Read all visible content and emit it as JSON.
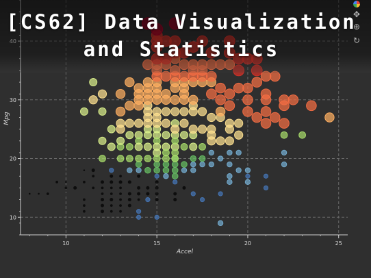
{
  "title": {
    "line1": "[CS62] Data Visualization",
    "line2": "and Statistics"
  },
  "toolbar": {
    "items": [
      {
        "name": "bokeh-logo-icon"
      },
      {
        "name": "pan-icon",
        "glyph": "✥"
      },
      {
        "name": "zoom-icon",
        "glyph": "⊕"
      },
      {
        "name": "reset-icon",
        "glyph": "↻"
      }
    ]
  },
  "colors": {
    "background": "#2f2f2f",
    "grid": "#6a6a6a",
    "axis": "#cfcfcf",
    "text": "#dcdcdc",
    "scale": [
      "#a50026",
      "#d73027",
      "#f46d43",
      "#fdae61",
      "#fee090",
      "#d9ef8b",
      "#a6d96a",
      "#66bd63",
      "#74add1",
      "#4575b4"
    ]
  },
  "chart_data": {
    "type": "scatter",
    "xlabel": "Accel",
    "ylabel": "Mpg",
    "xlim": [
      7.5,
      25.5
    ],
    "ylim": [
      7,
      47
    ],
    "xticks": [
      10,
      15,
      20,
      25
    ],
    "yticks": [
      10,
      20,
      30,
      40
    ],
    "grid": true,
    "points": [
      [
        8,
        14,
        13
      ],
      [
        8.5,
        15,
        14
      ],
      [
        8.5,
        14,
        12
      ],
      [
        9,
        14,
        11
      ],
      [
        8,
        14,
        12
      ],
      [
        9.5,
        16,
        11
      ],
      [
        10,
        16,
        12
      ],
      [
        10,
        15,
        11
      ],
      [
        10,
        14,
        13
      ],
      [
        10.5,
        15,
        10
      ],
      [
        11,
        18,
        12
      ],
      [
        11,
        16,
        11
      ],
      [
        11,
        13,
        11
      ],
      [
        11,
        12,
        11
      ],
      [
        11,
        11,
        11
      ],
      [
        11.5,
        18,
        10
      ],
      [
        11.5,
        17,
        11
      ],
      [
        11.5,
        15,
        11
      ],
      [
        12,
        16,
        10
      ],
      [
        12,
        15,
        11
      ],
      [
        12,
        14,
        11
      ],
      [
        12,
        13,
        10
      ],
      [
        12,
        12,
        10
      ],
      [
        12,
        11,
        10
      ],
      [
        12.5,
        18,
        9
      ],
      [
        12.5,
        17,
        10
      ],
      [
        12.5,
        16,
        10
      ],
      [
        12.5,
        15,
        11
      ],
      [
        12.5,
        14,
        11
      ],
      [
        12.5,
        13,
        10
      ],
      [
        12.5,
        12,
        11
      ],
      [
        12.5,
        11,
        11
      ],
      [
        13,
        17,
        11
      ],
      [
        13,
        16,
        10
      ],
      [
        13,
        15,
        11
      ],
      [
        13,
        14,
        11
      ],
      [
        13,
        13,
        11
      ],
      [
        13,
        12,
        11
      ],
      [
        13,
        11,
        11
      ],
      [
        13.5,
        14,
        10
      ],
      [
        13.5,
        13,
        10
      ],
      [
        13.5,
        12,
        10
      ],
      [
        13.5,
        16,
        10
      ],
      [
        14,
        14,
        10
      ],
      [
        14,
        13,
        11
      ],
      [
        14,
        15,
        10
      ],
      [
        14,
        17,
        10
      ],
      [
        14.5,
        13,
        9
      ],
      [
        14.5,
        14,
        10
      ],
      [
        14.5,
        15,
        10
      ],
      [
        15,
        16,
        10
      ],
      [
        15,
        15,
        10
      ],
      [
        15,
        17,
        9
      ],
      [
        15,
        13,
        10
      ],
      [
        15,
        14,
        10
      ],
      [
        14,
        11,
        9
      ],
      [
        14,
        10,
        9
      ],
      [
        15,
        10,
        9
      ],
      [
        16,
        13,
        10
      ],
      [
        16,
        14,
        10
      ],
      [
        16.5,
        15,
        10
      ],
      [
        16,
        16,
        9
      ],
      [
        17,
        14,
        9
      ],
      [
        17.5,
        13,
        9
      ],
      [
        18.5,
        14,
        9
      ],
      [
        18.5,
        9,
        8
      ],
      [
        13.5,
        18,
        8
      ],
      [
        14,
        18,
        8
      ],
      [
        14,
        19,
        7
      ],
      [
        14.5,
        18,
        7
      ],
      [
        15,
        18,
        7
      ],
      [
        15,
        19,
        7
      ],
      [
        15.5,
        18,
        7
      ],
      [
        15.5,
        19,
        7
      ],
      [
        15.5,
        17,
        8
      ],
      [
        16,
        17,
        7
      ],
      [
        16,
        18,
        7
      ],
      [
        16,
        19,
        7
      ],
      [
        16,
        20,
        7
      ],
      [
        16.5,
        18,
        8
      ],
      [
        16.5,
        19,
        7
      ],
      [
        17,
        19,
        8
      ],
      [
        17,
        20,
        7
      ],
      [
        17,
        18,
        8
      ],
      [
        17.5,
        19,
        8
      ],
      [
        17.5,
        20,
        7
      ],
      [
        18,
        21,
        8
      ],
      [
        18,
        19,
        8
      ],
      [
        18.5,
        20,
        8
      ],
      [
        19,
        19,
        8
      ],
      [
        19,
        21,
        8
      ],
      [
        19.5,
        21,
        8
      ],
      [
        19,
        17,
        8
      ],
      [
        19.5,
        18,
        8
      ],
      [
        19,
        16,
        8
      ],
      [
        20,
        17,
        9
      ],
      [
        20,
        18,
        8
      ],
      [
        20,
        16,
        8
      ],
      [
        21,
        15,
        9
      ],
      [
        21,
        17,
        9
      ],
      [
        22,
        19,
        8
      ],
      [
        22,
        21,
        8
      ],
      [
        13,
        22,
        6
      ],
      [
        13,
        23,
        5
      ],
      [
        13.5,
        22,
        6
      ],
      [
        13.5,
        24,
        5
      ],
      [
        14,
        24,
        5
      ],
      [
        14,
        23,
        6
      ],
      [
        14,
        22,
        5
      ],
      [
        14.5,
        25,
        5
      ],
      [
        14.5,
        24,
        5
      ],
      [
        14.5,
        22,
        5
      ],
      [
        15,
        24,
        5
      ],
      [
        15,
        23,
        6
      ],
      [
        15,
        22,
        5
      ],
      [
        15,
        21,
        5
      ],
      [
        15,
        25,
        5
      ],
      [
        15.5,
        24,
        5
      ],
      [
        15.5,
        22,
        5
      ],
      [
        15.5,
        21,
        6
      ],
      [
        16,
        22,
        5
      ],
      [
        16,
        24,
        5
      ],
      [
        16,
        23,
        6
      ],
      [
        16,
        21,
        6
      ],
      [
        16.5,
        22,
        6
      ],
      [
        16.5,
        24,
        5
      ],
      [
        17,
        22,
        5
      ],
      [
        17,
        24,
        5
      ],
      [
        17.5,
        22,
        6
      ],
      [
        12.5,
        22,
        5
      ],
      [
        12,
        23,
        5
      ],
      [
        12,
        20,
        6
      ],
      [
        13,
        20,
        6
      ],
      [
        13.5,
        20,
        6
      ],
      [
        14,
        20,
        6
      ],
      [
        14.5,
        20,
        6
      ],
      [
        15,
        20,
        6
      ],
      [
        15.5,
        20,
        6
      ],
      [
        16,
        20,
        6
      ],
      [
        12.5,
        25,
        5
      ],
      [
        13,
        26,
        4
      ],
      [
        13,
        25,
        4
      ],
      [
        13.5,
        26,
        4
      ],
      [
        14,
        26,
        4
      ],
      [
        14.5,
        26,
        4
      ],
      [
        15,
        26,
        4
      ],
      [
        15.5,
        26,
        4
      ],
      [
        16,
        26,
        5
      ],
      [
        16.5,
        26,
        4
      ],
      [
        17,
        25,
        4
      ],
      [
        17.5,
        25,
        4
      ],
      [
        18,
        25,
        4
      ],
      [
        18,
        24,
        4
      ],
      [
        16,
        25,
        4
      ],
      [
        15,
        27,
        4
      ],
      [
        14.5,
        28,
        4
      ],
      [
        14.5,
        29,
        4
      ],
      [
        15,
        28,
        4
      ],
      [
        15.5,
        28,
        4
      ],
      [
        16,
        28,
        4
      ],
      [
        16.5,
        28,
        4
      ],
      [
        17,
        28,
        4
      ],
      [
        17.5,
        28,
        4
      ],
      [
        18,
        27,
        4
      ],
      [
        18.5,
        27,
        4
      ],
      [
        19,
        25,
        4
      ],
      [
        19,
        26,
        4
      ],
      [
        19.5,
        26,
        4
      ],
      [
        19.5,
        24,
        4
      ],
      [
        18.5,
        23,
        4
      ],
      [
        19,
        23,
        4
      ],
      [
        18,
        23,
        4
      ],
      [
        14.5,
        27,
        4
      ],
      [
        17,
        29,
        4
      ],
      [
        14,
        30,
        3
      ],
      [
        14,
        29,
        3
      ],
      [
        14.5,
        30,
        3
      ],
      [
        15,
        30,
        3
      ],
      [
        15.5,
        30,
        3
      ],
      [
        16,
        30,
        3
      ],
      [
        16.5,
        30,
        3
      ],
      [
        17,
        30,
        3
      ],
      [
        14.5,
        31,
        3
      ],
      [
        15,
        31,
        3
      ],
      [
        15.5,
        31,
        3
      ],
      [
        16.5,
        31,
        3
      ],
      [
        16,
        32,
        3
      ],
      [
        16.5,
        32,
        3
      ],
      [
        14.5,
        32,
        3
      ],
      [
        15,
        32,
        3
      ],
      [
        14,
        31,
        3
      ],
      [
        14,
        32,
        3
      ],
      [
        13.5,
        33,
        3
      ],
      [
        14.5,
        33,
        3
      ],
      [
        15,
        33,
        3
      ],
      [
        16,
        33,
        3
      ],
      [
        16.5,
        33,
        3
      ],
      [
        17,
        33,
        3
      ],
      [
        17.5,
        33,
        3
      ],
      [
        18,
        33,
        3
      ],
      [
        15,
        34,
        2
      ],
      [
        15.5,
        34,
        2
      ],
      [
        16,
        34,
        2
      ],
      [
        16.5,
        34,
        2
      ],
      [
        17,
        34,
        2
      ],
      [
        17.5,
        34,
        2
      ],
      [
        15,
        35,
        2
      ],
      [
        16,
        35,
        2
      ],
      [
        17,
        35,
        2
      ],
      [
        17.5,
        35,
        2
      ],
      [
        14.5,
        36,
        2
      ],
      [
        15,
        36,
        2
      ],
      [
        15.5,
        36,
        2
      ],
      [
        16,
        37,
        2
      ],
      [
        16.5,
        36,
        2
      ],
      [
        17,
        36,
        2
      ],
      [
        17.5,
        36,
        2
      ],
      [
        18,
        36,
        2
      ],
      [
        18.5,
        36,
        2
      ],
      [
        19,
        36,
        2
      ],
      [
        15,
        37,
        1
      ],
      [
        15.5,
        37,
        1
      ],
      [
        16,
        38,
        1
      ],
      [
        16.5,
        38,
        1
      ],
      [
        15,
        39,
        1
      ],
      [
        17,
        39,
        1
      ],
      [
        17.5,
        40,
        1
      ],
      [
        18,
        38,
        1
      ],
      [
        19,
        38,
        1
      ],
      [
        15,
        40,
        1
      ],
      [
        15,
        41,
        1
      ],
      [
        15.5,
        40,
        1
      ],
      [
        16,
        40,
        1
      ],
      [
        15,
        42,
        0
      ],
      [
        14.5,
        43,
        0
      ],
      [
        16,
        43,
        0
      ],
      [
        19,
        40,
        1
      ],
      [
        19.5,
        37,
        1
      ],
      [
        20,
        37,
        1
      ],
      [
        20.5,
        37,
        1
      ],
      [
        20.5,
        35,
        1
      ],
      [
        21,
        34,
        2
      ],
      [
        21.5,
        34,
        2
      ],
      [
        19.5,
        35,
        1
      ],
      [
        19.5,
        32,
        2
      ],
      [
        20,
        32,
        2
      ],
      [
        21,
        31,
        2
      ],
      [
        21,
        30,
        2
      ],
      [
        22,
        30,
        2
      ],
      [
        22.5,
        30,
        2
      ],
      [
        22,
        29,
        2
      ],
      [
        21,
        28,
        2
      ],
      [
        21.5,
        27,
        2
      ],
      [
        21,
        26,
        2
      ],
      [
        22,
        26,
        2
      ],
      [
        23.5,
        29,
        2
      ],
      [
        24.5,
        27,
        3
      ],
      [
        20.5,
        33,
        2
      ],
      [
        20,
        30,
        2
      ],
      [
        18.5,
        32,
        2
      ],
      [
        18,
        34,
        2
      ],
      [
        18,
        31,
        2
      ],
      [
        18.5,
        30,
        2
      ],
      [
        19,
        31,
        2
      ],
      [
        19,
        29,
        2
      ],
      [
        20,
        28,
        2
      ],
      [
        20.5,
        27,
        2
      ],
      [
        18.5,
        28,
        3
      ],
      [
        11.5,
        30,
        4
      ],
      [
        11.5,
        33,
        5
      ],
      [
        13,
        31,
        3
      ],
      [
        12,
        28,
        5
      ],
      [
        12,
        31,
        4
      ],
      [
        13.5,
        29,
        3
      ],
      [
        13,
        28,
        3
      ],
      [
        11,
        28,
        5
      ],
      [
        23,
        24,
        6
      ],
      [
        22,
        24,
        6
      ]
    ]
  }
}
